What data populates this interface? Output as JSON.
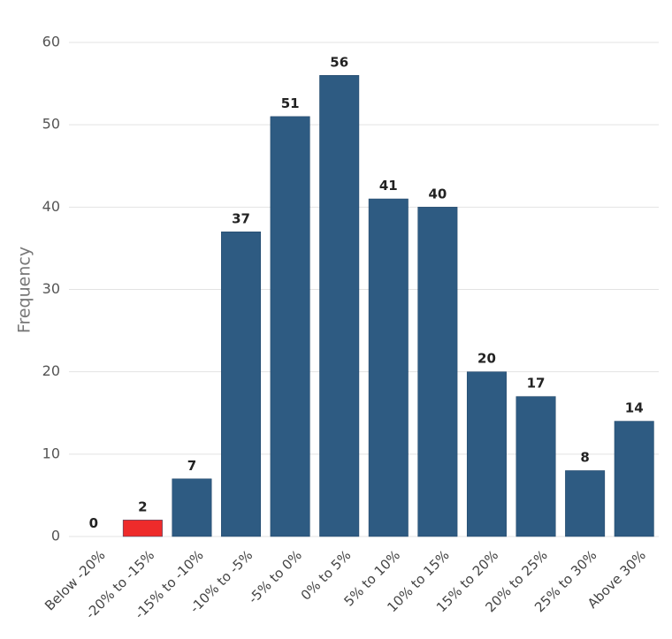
{
  "chart_data": {
    "type": "bar",
    "y_label": "Frequency",
    "categories": [
      "Below -20%",
      "-20% to -15%",
      "-15% to -10%",
      "-10% to -5%",
      "-5% to 0%",
      "0% to 5%",
      "5% to 10%",
      "10% to 15%",
      "15% to 20%",
      "20% to 25%",
      "25% to 30%",
      "Above 30%"
    ],
    "values": [
      0,
      2,
      7,
      37,
      51,
      56,
      41,
      40,
      20,
      17,
      8,
      14
    ],
    "colors": [
      "#2e5b82",
      "#ee2b2b",
      "#2e5b82",
      "#2e5b82",
      "#2e5b82",
      "#2e5b82",
      "#2e5b82",
      "#2e5b82",
      "#2e5b82",
      "#2e5b82",
      "#2e5b82",
      "#2e5b82"
    ],
    "ylim": [
      0,
      60
    ],
    "yticks": [
      0,
      10,
      20,
      30,
      40,
      50,
      60
    ],
    "grid": true
  }
}
